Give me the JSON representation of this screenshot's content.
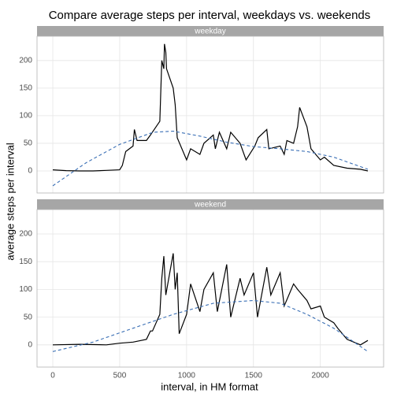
{
  "chart_data": {
    "type": "line",
    "title": "Compare average steps per interval, weekdays vs. weekends",
    "xlabel": "interval, in HM format",
    "ylabel": "average steps per interval",
    "xlim": [
      -118,
      2473
    ],
    "xticks": [
      0,
      500,
      1000,
      1500,
      2000
    ],
    "ylim": [
      -40,
      244
    ],
    "yticks": [
      0,
      50,
      100,
      150,
      200
    ],
    "grid": true,
    "panels": [
      {
        "label": "weekday",
        "series": [
          {
            "color": "#000000",
            "linestyle": "solid",
            "x": [
              0,
              100,
              200,
              300,
              400,
              500,
              520,
              545,
              600,
              610,
              630,
              700,
              730,
              800,
              815,
              830,
              835,
              845,
              850,
              900,
              915,
              930,
              1000,
              1030,
              1100,
              1130,
              1200,
              1215,
              1245,
              1300,
              1330,
              1400,
              1445,
              1510,
              1535,
              1600,
              1615,
              1700,
              1730,
              1750,
              1800,
              1830,
              1845,
              1900,
              1930,
              2000,
              2030,
              2100,
              2200,
              2300,
              2355
            ],
            "values": [
              2,
              0.5,
              0,
              0,
              1,
              2,
              10,
              35,
              45,
              75,
              55,
              55,
              65,
              90,
              200,
              185,
              230,
              215,
              185,
              150,
              120,
              60,
              20,
              40,
              30,
              50,
              65,
              40,
              70,
              40,
              70,
              50,
              20,
              45,
              60,
              75,
              40,
              45,
              30,
              55,
              50,
              80,
              115,
              80,
              40,
              20,
              25,
              10,
              5,
              3,
              0
            ]
          },
          {
            "color": "#3a6fb5",
            "linestyle": "dashed",
            "x": [
              0,
              250,
              500,
              750,
              900,
              1100,
              1300,
              1500,
              1700,
              1900,
              2100,
              2355
            ],
            "values": [
              -27,
              15,
              48,
              70,
              72,
              63,
              52,
              44,
              40,
              35,
              25,
              3
            ]
          }
        ]
      },
      {
        "label": "weekend",
        "series": [
          {
            "color": "#000000",
            "linestyle": "solid",
            "x": [
              0,
              200,
              400,
              500,
              600,
              700,
              730,
              745,
              800,
              815,
              830,
              845,
              900,
              915,
              930,
              945,
              1000,
              1030,
              1100,
              1130,
              1200,
              1230,
              1300,
              1330,
              1400,
              1430,
              1500,
              1530,
              1600,
              1630,
              1700,
              1730,
              1800,
              1830,
              1900,
              1930,
              2000,
              2030,
              2100,
              2130,
              2200,
              2300,
              2355
            ],
            "values": [
              0,
              1,
              0,
              3,
              5,
              10,
              25,
              25,
              55,
              120,
              160,
              90,
              165,
              100,
              130,
              20,
              55,
              110,
              60,
              100,
              130,
              60,
              145,
              50,
              120,
              90,
              130,
              50,
              140,
              90,
              130,
              70,
              110,
              100,
              80,
              65,
              70,
              50,
              40,
              30,
              10,
              0,
              8
            ]
          },
          {
            "color": "#3a6fb5",
            "linestyle": "dashed",
            "x": [
              0,
              300,
              600,
              900,
              1200,
              1500,
              1700,
              1900,
              2100,
              2355
            ],
            "values": [
              -12,
              5,
              30,
              55,
              75,
              80,
              75,
              55,
              30,
              -12
            ]
          }
        ]
      }
    ]
  }
}
